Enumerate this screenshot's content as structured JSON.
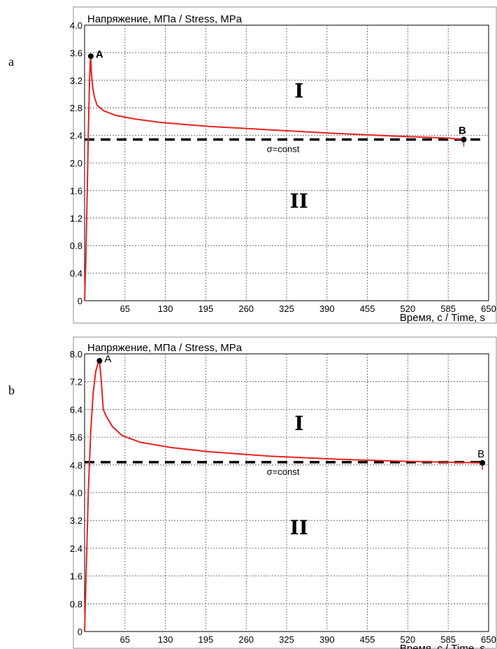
{
  "panels": [
    {
      "letter": "a"
    },
    {
      "letter": "b"
    }
  ],
  "chart_data": [
    {
      "type": "line",
      "title": "Напряжение, МПа / Stress, MPa",
      "xlabel": "Время, с / Time, s",
      "ylabel": "",
      "xlim": [
        0,
        650
      ],
      "ylim": [
        0,
        4.0
      ],
      "x_ticks": [
        65,
        130,
        195,
        260,
        325,
        390,
        455,
        520,
        585,
        650
      ],
      "y_ticks": [
        0,
        0.4,
        0.8,
        1.2,
        1.6,
        2.0,
        2.4,
        2.8,
        3.2,
        3.6,
        4.0
      ],
      "y_tick_labels": [
        "0",
        "0.4",
        "0.8",
        "1.2",
        "1.6",
        "2.0",
        "2.4",
        "2.8",
        "3.2",
        "3.6",
        "4.0"
      ],
      "grid": true,
      "series": [
        {
          "color": "#e8231d",
          "points": [
            [
              0,
              0
            ],
            [
              2,
              0.6
            ],
            [
              4,
              1.5
            ],
            [
              6,
              2.4
            ],
            [
              8,
              3.2
            ],
            [
              9,
              3.45
            ],
            [
              10,
              3.55
            ],
            [
              11,
              3.3
            ],
            [
              13,
              3.1
            ],
            [
              16,
              2.95
            ],
            [
              20,
              2.84
            ],
            [
              30,
              2.76
            ],
            [
              50,
              2.69
            ],
            [
              80,
              2.64
            ],
            [
              120,
              2.59
            ],
            [
              200,
              2.53
            ],
            [
              300,
              2.48
            ],
            [
              400,
              2.43
            ],
            [
              500,
              2.39
            ],
            [
              585,
              2.36
            ],
            [
              610,
              2.34
            ]
          ]
        }
      ],
      "reference_line": {
        "y": 2.34,
        "label": "σ=const"
      },
      "annotations": [
        {
          "text": "A",
          "x": 10,
          "y": 3.55
        },
        {
          "text": "B",
          "x": 610,
          "y": 2.34
        },
        {
          "text": "I",
          "x": 345,
          "y": 2.95
        },
        {
          "text": "II",
          "x": 345,
          "y": 1.35
        }
      ]
    },
    {
      "type": "line",
      "title": "Напряжение, МПа / Stress, MPa",
      "xlabel": "Время, с / Time, s",
      "ylabel": "",
      "xlim": [
        0,
        650
      ],
      "ylim": [
        0,
        8.0
      ],
      "x_ticks": [
        65,
        130,
        195,
        260,
        325,
        390,
        455,
        520,
        585,
        650
      ],
      "y_ticks": [
        0,
        0.8,
        1.6,
        2.4,
        3.2,
        4.0,
        4.8,
        5.6,
        6.4,
        7.2,
        8.0
      ],
      "y_tick_labels": [
        "0",
        "0.8",
        "1.6",
        "2.4",
        "3.2",
        "4.0",
        "4.8",
        "5.6",
        "6.4",
        "7.2",
        "8.0"
      ],
      "grid": true,
      "series": [
        {
          "color": "#e8231d",
          "points": [
            [
              0,
              0
            ],
            [
              3,
              2.0
            ],
            [
              6,
              4.0
            ],
            [
              10,
              5.8
            ],
            [
              14,
              6.9
            ],
            [
              18,
              7.5
            ],
            [
              22,
              7.75
            ],
            [
              24,
              7.8
            ],
            [
              27,
              7.2
            ],
            [
              30,
              6.4
            ],
            [
              35,
              6.2
            ],
            [
              45,
              5.9
            ],
            [
              60,
              5.65
            ],
            [
              90,
              5.45
            ],
            [
              140,
              5.3
            ],
            [
              200,
              5.18
            ],
            [
              300,
              5.05
            ],
            [
              400,
              4.97
            ],
            [
              500,
              4.91
            ],
            [
              600,
              4.87
            ],
            [
              640,
              4.86
            ]
          ]
        }
      ],
      "reference_line": {
        "y": 4.88,
        "label": "σ=const"
      },
      "annotations": [
        {
          "text": "A",
          "x": 24,
          "y": 7.8
        },
        {
          "text": "B",
          "x": 640,
          "y": 4.86
        },
        {
          "text": "I",
          "x": 345,
          "y": 5.8
        },
        {
          "text": "II",
          "x": 345,
          "y": 2.8
        }
      ]
    }
  ]
}
